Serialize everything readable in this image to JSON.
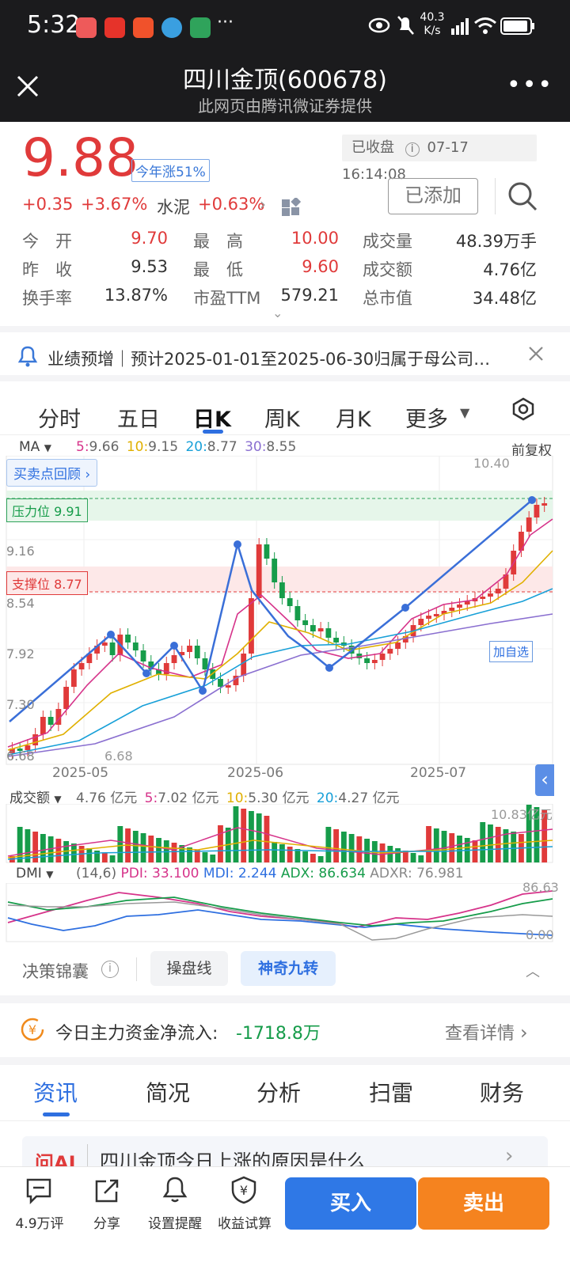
{
  "status": {
    "time": "5:32",
    "net_speed": "40.3",
    "net_unit": "K/s",
    "more": "···"
  },
  "header": {
    "title": "四川金顶(600678)",
    "subtitle": "此网页由腾讯微证券提供"
  },
  "quote": {
    "price": "9.88",
    "ytd": "今年涨51%",
    "closed_label": "已收盘",
    "datetime": "07-17 16:14:08",
    "change": "+0.35",
    "change_pct": "+3.67%",
    "sector": "水泥",
    "sector_pct": "+0.63%",
    "added_button": "已添加"
  },
  "stats": [
    {
      "label": "今　开",
      "value": "9.70",
      "color": "#e03a3a"
    },
    {
      "label": "最　高",
      "value": "10.00",
      "color": "#e03a3a"
    },
    {
      "label": "成交量",
      "value": "48.39万手",
      "color": "#333"
    },
    {
      "label": "昨　收",
      "value": "9.53",
      "color": "#333"
    },
    {
      "label": "最　低",
      "value": "9.60",
      "color": "#e03a3a"
    },
    {
      "label": "成交额",
      "value": "4.76亿",
      "color": "#333"
    },
    {
      "label": "换手率",
      "value": "13.87%",
      "color": "#333"
    },
    {
      "label": "市盈TTM",
      "value": "579.21",
      "color": "#333"
    },
    {
      "label": "总市值",
      "value": "34.48亿",
      "color": "#333"
    }
  ],
  "notice": {
    "text": "业绩预增｜预计2025-01-01至2025-06-30归属于母公司…"
  },
  "chart_tabs": [
    {
      "label": "分时"
    },
    {
      "label": "五日"
    },
    {
      "label": "日K"
    },
    {
      "label": "周K"
    },
    {
      "label": "月K"
    },
    {
      "label": "更多"
    }
  ],
  "ma": {
    "label": "MA",
    "items": [
      {
        "label": "5:",
        "value": "9.66",
        "color": "#d6338a"
      },
      {
        "label": "10:",
        "value": "9.15",
        "color": "#e0b000"
      },
      {
        "label": "20:",
        "value": "8.77",
        "color": "#18a0d8"
      },
      {
        "label": "30:",
        "value": "8.55",
        "color": "#8a6fd0"
      }
    ],
    "adjust": "前复权",
    "review": "买卖点回顾"
  },
  "price_axis": [
    "9.16",
    "8.54",
    "7.92",
    "7.30",
    "6.68"
  ],
  "pressure": {
    "label": "压力位",
    "value": "9.91"
  },
  "support": {
    "label": "支撑位",
    "value": "8.77"
  },
  "high_label": "10.40",
  "low_label": "6.68",
  "add_watch": "加自选",
  "dates": [
    "2025-05",
    "2025-06",
    "2025-07"
  ],
  "volume": {
    "label": "成交额",
    "value": "4.76 亿元",
    "items": [
      {
        "label": "5:",
        "value": "7.02 亿元",
        "color": "#d6338a"
      },
      {
        "label": "10:",
        "value": "5.30 亿元",
        "color": "#e0b000"
      },
      {
        "label": "20:",
        "value": "4.27 亿元",
        "color": "#18a0d8"
      }
    ],
    "max": "10.83亿元"
  },
  "dmi": {
    "label": "DMI",
    "params": "(14,6)",
    "pdi": "PDI: 33.100",
    "mdi": "MDI: 2.244",
    "adx": "ADX: 86.634",
    "adxr": "ADXR: 76.981",
    "top": "86.63",
    "bottom": "0.00"
  },
  "tools": {
    "label": "决策锦囊",
    "items": [
      "操盘线",
      "神奇九转"
    ]
  },
  "fund_flow": {
    "label": "今日主力资金净流入:",
    "value": "-1718.8万",
    "detail": "查看详情"
  },
  "info_tabs": [
    "资讯",
    "简况",
    "分析",
    "扫雷",
    "财务"
  ],
  "ai": {
    "badge": "问AI",
    "question": "四川金顶今日上涨的原因是什么"
  },
  "bottom": {
    "comments": "4.9万评",
    "share": "分享",
    "alert": "设置提醒",
    "calc": "收益试算",
    "buy": "买入",
    "sell": "卖出"
  },
  "chart_data": {
    "type": "candlestick",
    "title": "",
    "xlabel": "",
    "ylabel": "",
    "ylim": [
      6.68,
      10.4
    ],
    "x_ticks": [
      "2025-05",
      "2025-06",
      "2025-07"
    ],
    "y_ticks": [
      9.16,
      8.54,
      7.92,
      7.3,
      6.68
    ],
    "levels": {
      "pressure": 9.91,
      "support": 8.77
    },
    "moving_averages": {
      "MA5": 9.66,
      "MA10": 9.15,
      "MA20": 8.77,
      "MA30": 8.55
    }
  }
}
